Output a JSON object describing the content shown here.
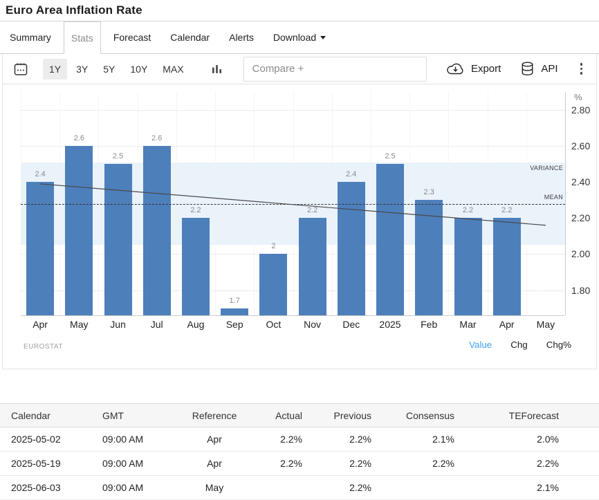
{
  "page": {
    "title": "Euro Area Inflation Rate"
  },
  "tabs": {
    "items": [
      {
        "label": "Summary",
        "active": false,
        "caret": false
      },
      {
        "label": "Stats",
        "active": true,
        "caret": false
      },
      {
        "label": "Forecast",
        "active": false,
        "caret": false
      },
      {
        "label": "Calendar",
        "active": false,
        "caret": false
      },
      {
        "label": "Alerts",
        "active": false,
        "caret": false
      },
      {
        "label": "Download",
        "active": false,
        "caret": true
      }
    ]
  },
  "toolbar": {
    "calendar_icon": "calendar-icon",
    "ranges": [
      {
        "label": "1Y",
        "active": true
      },
      {
        "label": "3Y",
        "active": false
      },
      {
        "label": "5Y",
        "active": false
      },
      {
        "label": "10Y",
        "active": false
      },
      {
        "label": "MAX",
        "active": false
      }
    ],
    "compare_placeholder": "Compare +",
    "export_label": "Export",
    "api_label": "API"
  },
  "chart_data": {
    "type": "bar",
    "title": "Euro Area Inflation Rate",
    "categories": [
      "Apr",
      "May",
      "Jun",
      "Jul",
      "Aug",
      "Sep",
      "Oct",
      "Nov",
      "Dec",
      "2025",
      "Feb",
      "Mar",
      "Apr",
      "May"
    ],
    "values": [
      2.4,
      2.6,
      2.5,
      2.6,
      2.2,
      1.7,
      2,
      2.2,
      2.4,
      2.5,
      2.3,
      2.2,
      2.2,
      null
    ],
    "bar_labels": [
      "2.4",
      "2.6",
      "2.5",
      "2.6",
      "2.2",
      "1.7",
      "2",
      "2.2",
      "2.4",
      "2.5",
      "2.3",
      "2.2",
      "2.2",
      ""
    ],
    "xlabel": "",
    "ylabel": "%",
    "ylim": [
      1.66,
      2.9
    ],
    "yticks": [
      {
        "value": 2.8,
        "label": "2.80"
      },
      {
        "value": 2.6,
        "label": "2.60"
      },
      {
        "value": 2.4,
        "label": "2.40"
      },
      {
        "value": 2.2,
        "label": "2.20"
      },
      {
        "value": 2.0,
        "label": "2.00"
      },
      {
        "value": 1.8,
        "label": "1.80"
      }
    ],
    "grid": true,
    "legend_position": "none",
    "mean": {
      "value": 2.28,
      "label": "MEAN"
    },
    "variance_band": {
      "from": 2.05,
      "to": 2.51,
      "label": "VARIANCE"
    },
    "trend": {
      "start": 2.39,
      "end": 2.16
    }
  },
  "chart_footer": {
    "source": "EUROSTAT",
    "toggles": [
      {
        "label": "Value",
        "active": true
      },
      {
        "label": "Chg",
        "active": false
      },
      {
        "label": "Chg%",
        "active": false
      }
    ]
  },
  "colors": {
    "bar": "#4d7fbb",
    "variance_band": "#eaf2fa",
    "trend_line": "#4a4a4a",
    "mean_line": "#333333",
    "accent_blue": "#3aa0f2",
    "active_range_bg": "#ececec"
  },
  "table": {
    "headers": [
      "Calendar",
      "GMT",
      "Reference",
      "Actual",
      "Previous",
      "Consensus",
      "TEForecast"
    ],
    "rows": [
      [
        "2025-05-02",
        "09:00 AM",
        "Apr",
        "2.2%",
        "2.2%",
        "2.1%",
        "2.0%"
      ],
      [
        "2025-05-19",
        "09:00 AM",
        "Apr",
        "2.2%",
        "2.2%",
        "2.2%",
        "2.2%"
      ],
      [
        "2025-06-03",
        "09:00 AM",
        "May",
        "",
        "2.2%",
        "",
        "2.1%"
      ]
    ]
  }
}
